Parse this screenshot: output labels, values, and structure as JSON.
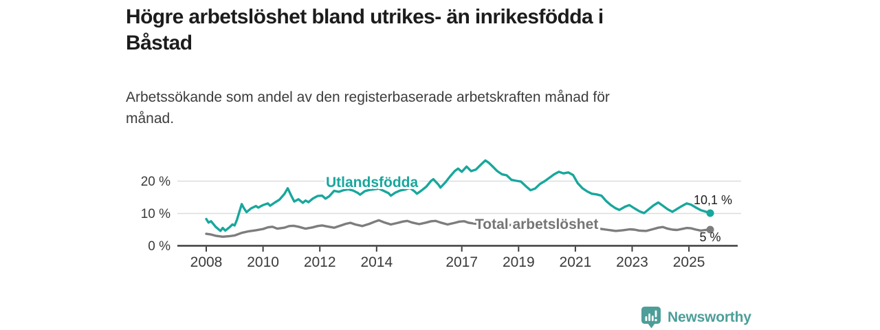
{
  "header": {
    "title_lines": [
      "Högre arbetslöshet bland utrikes- än inrikesfödda i",
      "Båstad"
    ],
    "subtitle_lines": [
      "Arbetssökande som andel av den registerbaserade arbetskraften månad för",
      "månad."
    ]
  },
  "chart_data": {
    "type": "line",
    "title": "Högre arbetslöshet bland utrikes- än inrikesfödda i Båstad",
    "subtitle": "Arbetssökande som andel av den registerbaserade arbetskraften månad för månad.",
    "xlabel": "",
    "ylabel": "",
    "unit": "%",
    "xlim": [
      2007,
      2026.7
    ],
    "ylim": [
      0,
      27.5
    ],
    "grid": "horizontal gridlines at 10 and 20, dark baseline at 0",
    "legend_position": "inline labels on lines",
    "x_ticks": [
      {
        "value": 2008,
        "label": "2008"
      },
      {
        "value": 2010,
        "label": "2010"
      },
      {
        "value": 2012,
        "label": "2012"
      },
      {
        "value": 2014,
        "label": "2014"
      },
      {
        "value": 2017,
        "label": "2017"
      },
      {
        "value": 2019,
        "label": "2019"
      },
      {
        "value": 2021,
        "label": "2021"
      },
      {
        "value": 2023,
        "label": "2023"
      },
      {
        "value": 2025,
        "label": "2025"
      }
    ],
    "y_ticks": [
      {
        "value": 0,
        "label": "0 %"
      },
      {
        "value": 10,
        "label": "10 %"
      },
      {
        "value": 20,
        "label": "20 %"
      }
    ],
    "series": [
      {
        "name": "Utlandsfödda",
        "color": "#18a79c",
        "end_label": "10,1 %",
        "end_value": 10.1,
        "points": [
          [
            2008.0,
            8.3
          ],
          [
            2008.08,
            7.2
          ],
          [
            2008.17,
            7.6
          ],
          [
            2008.33,
            5.9
          ],
          [
            2008.5,
            4.6
          ],
          [
            2008.58,
            5.5
          ],
          [
            2008.67,
            4.7
          ],
          [
            2008.83,
            5.8
          ],
          [
            2008.92,
            6.6
          ],
          [
            2009.0,
            6.3
          ],
          [
            2009.08,
            8.0
          ],
          [
            2009.25,
            12.9
          ],
          [
            2009.33,
            11.6
          ],
          [
            2009.42,
            10.4
          ],
          [
            2009.58,
            11.6
          ],
          [
            2009.75,
            12.3
          ],
          [
            2009.83,
            11.8
          ],
          [
            2010.0,
            12.6
          ],
          [
            2010.17,
            13.1
          ],
          [
            2010.25,
            12.4
          ],
          [
            2010.42,
            13.4
          ],
          [
            2010.58,
            14.3
          ],
          [
            2010.75,
            16.0
          ],
          [
            2010.87,
            17.8
          ],
          [
            2011.0,
            15.4
          ],
          [
            2011.1,
            13.7
          ],
          [
            2011.25,
            14.4
          ],
          [
            2011.4,
            13.3
          ],
          [
            2011.5,
            14.0
          ],
          [
            2011.6,
            13.5
          ],
          [
            2011.75,
            14.6
          ],
          [
            2011.92,
            15.4
          ],
          [
            2012.08,
            15.5
          ],
          [
            2012.2,
            14.6
          ],
          [
            2012.33,
            15.3
          ],
          [
            2012.5,
            17.0
          ],
          [
            2012.67,
            16.7
          ],
          [
            2012.83,
            17.2
          ],
          [
            2013.0,
            17.5
          ],
          [
            2013.17,
            17.1
          ],
          [
            2013.33,
            16.4
          ],
          [
            2013.42,
            15.8
          ],
          [
            2013.58,
            16.9
          ],
          [
            2013.75,
            17.3
          ],
          [
            2013.92,
            17.5
          ],
          [
            2014.08,
            17.7
          ],
          [
            2014.25,
            17.0
          ],
          [
            2014.42,
            16.3
          ],
          [
            2014.5,
            15.5
          ],
          [
            2014.67,
            16.5
          ],
          [
            2014.83,
            17.1
          ],
          [
            2015.0,
            17.4
          ],
          [
            2015.17,
            17.9
          ],
          [
            2015.33,
            16.9
          ],
          [
            2015.42,
            16.1
          ],
          [
            2015.58,
            17.1
          ],
          [
            2015.75,
            18.3
          ],
          [
            2015.92,
            20.1
          ],
          [
            2016.0,
            20.6
          ],
          [
            2016.17,
            19.0
          ],
          [
            2016.25,
            18.0
          ],
          [
            2016.42,
            19.6
          ],
          [
            2016.58,
            21.4
          ],
          [
            2016.75,
            23.1
          ],
          [
            2016.87,
            23.9
          ],
          [
            2017.0,
            22.9
          ],
          [
            2017.17,
            24.5
          ],
          [
            2017.33,
            23.1
          ],
          [
            2017.5,
            23.6
          ],
          [
            2017.67,
            25.1
          ],
          [
            2017.83,
            26.4
          ],
          [
            2017.95,
            25.7
          ],
          [
            2018.08,
            24.6
          ],
          [
            2018.25,
            23.1
          ],
          [
            2018.42,
            22.1
          ],
          [
            2018.58,
            21.8
          ],
          [
            2018.75,
            20.4
          ],
          [
            2018.92,
            20.1
          ],
          [
            2019.08,
            19.9
          ],
          [
            2019.25,
            18.5
          ],
          [
            2019.42,
            17.2
          ],
          [
            2019.58,
            17.7
          ],
          [
            2019.75,
            19.1
          ],
          [
            2019.92,
            20.0
          ],
          [
            2020.08,
            21.0
          ],
          [
            2020.25,
            22.1
          ],
          [
            2020.42,
            22.9
          ],
          [
            2020.58,
            22.4
          ],
          [
            2020.75,
            22.7
          ],
          [
            2020.92,
            21.9
          ],
          [
            2021.08,
            19.4
          ],
          [
            2021.25,
            17.8
          ],
          [
            2021.42,
            16.8
          ],
          [
            2021.58,
            16.1
          ],
          [
            2021.75,
            15.9
          ],
          [
            2021.92,
            15.5
          ],
          [
            2022.08,
            13.9
          ],
          [
            2022.25,
            12.6
          ],
          [
            2022.42,
            11.6
          ],
          [
            2022.55,
            11.1
          ],
          [
            2022.75,
            12.1
          ],
          [
            2022.9,
            12.6
          ],
          [
            2023.08,
            11.6
          ],
          [
            2023.25,
            10.7
          ],
          [
            2023.42,
            10.1
          ],
          [
            2023.58,
            11.3
          ],
          [
            2023.75,
            12.5
          ],
          [
            2023.92,
            13.4
          ],
          [
            2024.08,
            12.4
          ],
          [
            2024.25,
            11.3
          ],
          [
            2024.42,
            10.5
          ],
          [
            2024.58,
            11.4
          ],
          [
            2024.75,
            12.3
          ],
          [
            2024.92,
            13.1
          ],
          [
            2025.08,
            12.7
          ],
          [
            2025.25,
            11.8
          ],
          [
            2025.42,
            11.0
          ],
          [
            2025.58,
            10.6
          ],
          [
            2025.75,
            10.1
          ]
        ]
      },
      {
        "name": "Total arbetslöshet",
        "color": "#7d7d7d",
        "label_color": "#757575",
        "end_label": "5 %",
        "end_value": 5.0,
        "points": [
          [
            2008.0,
            3.7
          ],
          [
            2008.17,
            3.5
          ],
          [
            2008.33,
            3.1
          ],
          [
            2008.58,
            2.8
          ],
          [
            2008.83,
            3.0
          ],
          [
            2009.0,
            3.2
          ],
          [
            2009.25,
            4.0
          ],
          [
            2009.5,
            4.5
          ],
          [
            2009.75,
            4.8
          ],
          [
            2010.0,
            5.2
          ],
          [
            2010.17,
            5.7
          ],
          [
            2010.33,
            5.9
          ],
          [
            2010.5,
            5.3
          ],
          [
            2010.75,
            5.6
          ],
          [
            2010.92,
            6.1
          ],
          [
            2011.08,
            6.2
          ],
          [
            2011.25,
            5.9
          ],
          [
            2011.5,
            5.3
          ],
          [
            2011.75,
            5.7
          ],
          [
            2011.92,
            6.1
          ],
          [
            2012.08,
            6.3
          ],
          [
            2012.25,
            6.0
          ],
          [
            2012.5,
            5.6
          ],
          [
            2012.75,
            6.3
          ],
          [
            2012.92,
            6.8
          ],
          [
            2013.08,
            7.1
          ],
          [
            2013.25,
            6.6
          ],
          [
            2013.5,
            6.1
          ],
          [
            2013.75,
            6.8
          ],
          [
            2013.92,
            7.4
          ],
          [
            2014.08,
            7.9
          ],
          [
            2014.25,
            7.3
          ],
          [
            2014.5,
            6.6
          ],
          [
            2014.75,
            7.1
          ],
          [
            2014.92,
            7.5
          ],
          [
            2015.08,
            7.7
          ],
          [
            2015.25,
            7.2
          ],
          [
            2015.5,
            6.7
          ],
          [
            2015.75,
            7.2
          ],
          [
            2015.92,
            7.6
          ],
          [
            2016.08,
            7.7
          ],
          [
            2016.25,
            7.2
          ],
          [
            2016.5,
            6.6
          ],
          [
            2016.75,
            7.1
          ],
          [
            2016.92,
            7.5
          ],
          [
            2017.08,
            7.6
          ],
          [
            2017.25,
            7.1
          ],
          [
            2017.5,
            6.8
          ],
          [
            2017.75,
            7.2
          ],
          [
            2017.92,
            7.5
          ],
          [
            2018.17,
            7.0
          ],
          [
            2018.42,
            6.6
          ],
          [
            2018.67,
            6.4
          ],
          [
            2018.92,
            6.7
          ],
          [
            2019.17,
            6.4
          ],
          [
            2019.42,
            6.0
          ],
          [
            2019.67,
            6.2
          ],
          [
            2019.92,
            6.6
          ],
          [
            2020.17,
            7.0
          ],
          [
            2020.42,
            7.3
          ],
          [
            2020.67,
            7.0
          ],
          [
            2020.92,
            6.7
          ],
          [
            2021.17,
            6.2
          ],
          [
            2021.42,
            5.8
          ],
          [
            2021.67,
            5.5
          ],
          [
            2021.92,
            5.2
          ],
          [
            2022.17,
            4.9
          ],
          [
            2022.42,
            4.6
          ],
          [
            2022.67,
            4.8
          ],
          [
            2022.92,
            5.1
          ],
          [
            2023.08,
            5.0
          ],
          [
            2023.25,
            4.7
          ],
          [
            2023.5,
            4.6
          ],
          [
            2023.75,
            5.2
          ],
          [
            2023.92,
            5.6
          ],
          [
            2024.08,
            5.8
          ],
          [
            2024.25,
            5.3
          ],
          [
            2024.42,
            5.0
          ],
          [
            2024.58,
            4.9
          ],
          [
            2024.75,
            5.2
          ],
          [
            2024.92,
            5.5
          ],
          [
            2025.08,
            5.4
          ],
          [
            2025.25,
            5.0
          ],
          [
            2025.42,
            4.7
          ],
          [
            2025.58,
            4.9
          ],
          [
            2025.75,
            5.0
          ]
        ]
      }
    ]
  },
  "footer": {
    "brand": "Newsworthy"
  },
  "colors": {
    "teal_line": "#18a79c",
    "gray_line": "#7d7d7d",
    "gray_label": "#757575",
    "logo_teal": "#4d9e99",
    "grid": "#dcdcdc",
    "axis": "#3d3d3d",
    "text_dark": "#1c1c1c",
    "text_body": "#3c3c3c"
  }
}
